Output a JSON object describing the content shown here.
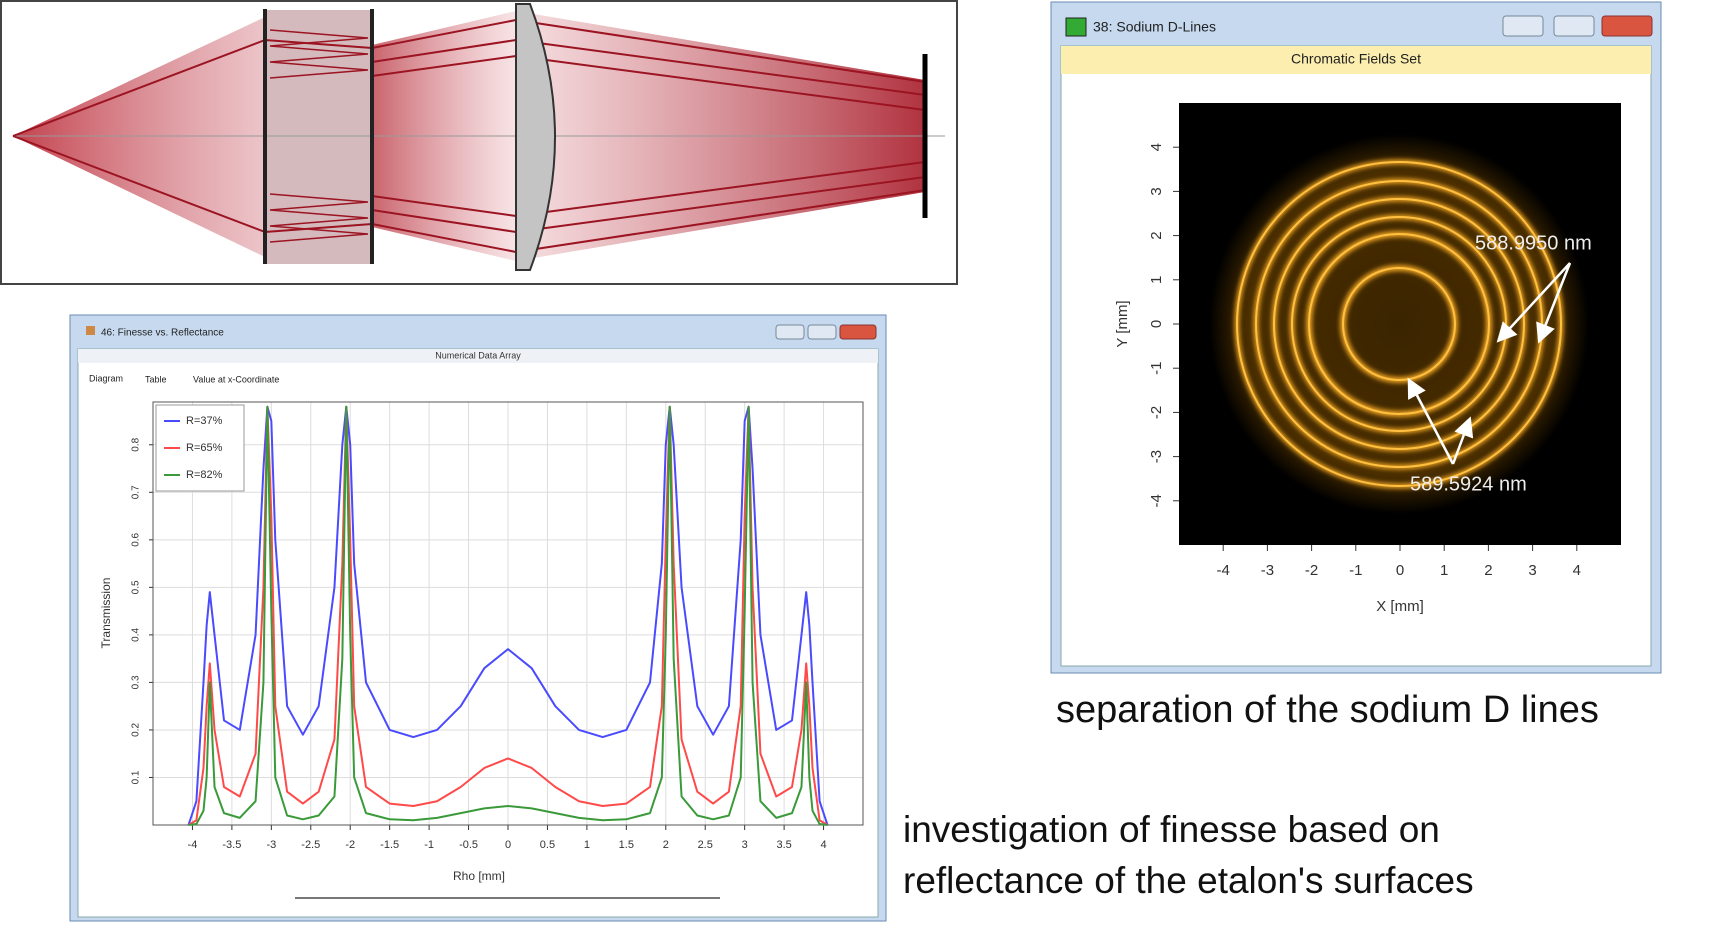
{
  "chart_data": {
    "type": "line",
    "window_title": "46: Finesse vs. Reflectance",
    "subtitle": "Numerical Data Array",
    "tabs": [
      "Diagram",
      "Table",
      "Value at x-Coordinate"
    ],
    "xlabel": "Rho [mm]",
    "ylabel": "Transmission",
    "x": [
      -4.05,
      -3.95,
      -3.86,
      -3.82,
      -3.78,
      -3.72,
      -3.6,
      -3.4,
      -3.2,
      -3.1,
      -3.05,
      -3,
      -2.95,
      -2.8,
      -2.6,
      -2.4,
      -2.2,
      -2.1,
      -2.05,
      -2,
      -1.95,
      -1.8,
      -1.5,
      -1.2,
      -0.9,
      -0.6,
      -0.3,
      0,
      0.3,
      0.6,
      0.9,
      1.2,
      1.5,
      1.8,
      1.95,
      2,
      2.05,
      2.1,
      2.2,
      2.4,
      2.6,
      2.8,
      2.95,
      3,
      3.05,
      3.1,
      3.2,
      3.4,
      3.6,
      3.72,
      3.78,
      3.82,
      3.86,
      3.95,
      4.05
    ],
    "series": [
      {
        "name": "R=37%",
        "color": "#4a4aff",
        "values": [
          0,
          0.05,
          0.3,
          0.42,
          0.49,
          0.4,
          0.22,
          0.2,
          0.4,
          0.75,
          0.88,
          0.85,
          0.6,
          0.25,
          0.19,
          0.25,
          0.5,
          0.8,
          0.88,
          0.8,
          0.55,
          0.3,
          0.2,
          0.185,
          0.2,
          0.25,
          0.33,
          0.37,
          0.33,
          0.25,
          0.2,
          0.185,
          0.2,
          0.3,
          0.55,
          0.8,
          0.88,
          0.8,
          0.5,
          0.25,
          0.19,
          0.25,
          0.6,
          0.85,
          0.88,
          0.75,
          0.4,
          0.2,
          0.22,
          0.4,
          0.49,
          0.42,
          0.3,
          0.05,
          0
        ]
      },
      {
        "name": "R=65%",
        "color": "#ff4a4a",
        "values": [
          0,
          0.01,
          0.12,
          0.25,
          0.34,
          0.2,
          0.08,
          0.06,
          0.15,
          0.5,
          0.88,
          0.65,
          0.25,
          0.07,
          0.045,
          0.07,
          0.18,
          0.55,
          0.88,
          0.6,
          0.25,
          0.08,
          0.045,
          0.04,
          0.05,
          0.08,
          0.12,
          0.14,
          0.12,
          0.08,
          0.05,
          0.04,
          0.045,
          0.08,
          0.25,
          0.6,
          0.88,
          0.55,
          0.18,
          0.07,
          0.045,
          0.07,
          0.25,
          0.65,
          0.88,
          0.5,
          0.15,
          0.06,
          0.08,
          0.2,
          0.34,
          0.25,
          0.12,
          0.01,
          0
        ]
      },
      {
        "name": "R=82%",
        "color": "#3a9a3a",
        "values": [
          0,
          0.002,
          0.03,
          0.1,
          0.3,
          0.08,
          0.025,
          0.015,
          0.05,
          0.3,
          0.88,
          0.45,
          0.1,
          0.02,
          0.012,
          0.02,
          0.06,
          0.35,
          0.88,
          0.4,
          0.1,
          0.025,
          0.012,
          0.01,
          0.015,
          0.025,
          0.035,
          0.04,
          0.035,
          0.025,
          0.015,
          0.01,
          0.012,
          0.025,
          0.1,
          0.4,
          0.88,
          0.35,
          0.06,
          0.02,
          0.012,
          0.02,
          0.1,
          0.45,
          0.88,
          0.3,
          0.05,
          0.015,
          0.025,
          0.08,
          0.3,
          0.1,
          0.03,
          0.002,
          0
        ]
      }
    ],
    "xlim": [
      -4.5,
      4.5
    ],
    "ylim": [
      0,
      0.89
    ],
    "xticks": [
      -4,
      -3.5,
      -3,
      -2.5,
      -2,
      -1.5,
      -1,
      -0.5,
      0,
      0.5,
      1,
      1.5,
      2,
      2.5,
      3,
      3.5,
      4
    ],
    "yticks": [
      0.1,
      0.2,
      0.3,
      0.4,
      0.5,
      0.6,
      0.7,
      0.8
    ],
    "grid": true,
    "legend": "upper left"
  },
  "field_window": {
    "title": "38: Sodium D-Lines",
    "subtitle": "Chromatic Fields Set",
    "xlabel": "X [mm]",
    "ylabel": "Y [mm]",
    "xlim": [
      -5,
      5
    ],
    "ylim": [
      -5,
      5
    ],
    "xticks": [
      -4,
      -3,
      -2,
      -1,
      0,
      1,
      2,
      3,
      4
    ],
    "yticks": [
      -4,
      -3,
      -2,
      -1,
      0,
      1,
      2,
      3,
      4
    ],
    "annotations": [
      "588.9950 nm",
      "589.5924 nm"
    ]
  },
  "captions": [
    "separation of the sodium D lines",
    "investigation of finesse based on",
    "reflectance of the etalon's surfaces"
  ]
}
